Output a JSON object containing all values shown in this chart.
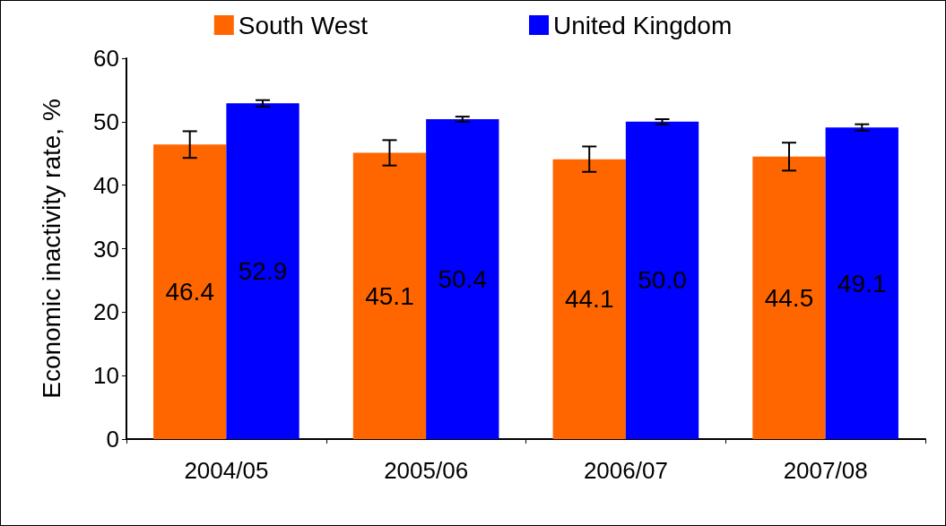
{
  "chart_data": {
    "type": "bar",
    "ylabel": "Economic inactivity rate, %",
    "categories": [
      "2004/05",
      "2005/06",
      "2006/07",
      "2007/08"
    ],
    "series": [
      {
        "name": "South West",
        "color": "#ff6600",
        "values": [
          46.4,
          45.1,
          44.1,
          44.5
        ],
        "value_labels": [
          "46.4",
          "45.1",
          "44.1",
          "44.5"
        ],
        "errors": [
          2.1,
          2.0,
          2.0,
          2.2
        ]
      },
      {
        "name": "United Kingdom",
        "color": "#0000ff",
        "values": [
          52.9,
          50.4,
          50.0,
          49.1
        ],
        "value_labels": [
          "52.9",
          "50.4",
          "50.0",
          "49.1"
        ],
        "errors": [
          0.5,
          0.4,
          0.4,
          0.5
        ]
      }
    ],
    "ylim": [
      0,
      60
    ],
    "yticks": [
      0,
      10,
      20,
      30,
      40,
      50,
      60
    ],
    "grid": false,
    "legend": "top"
  }
}
